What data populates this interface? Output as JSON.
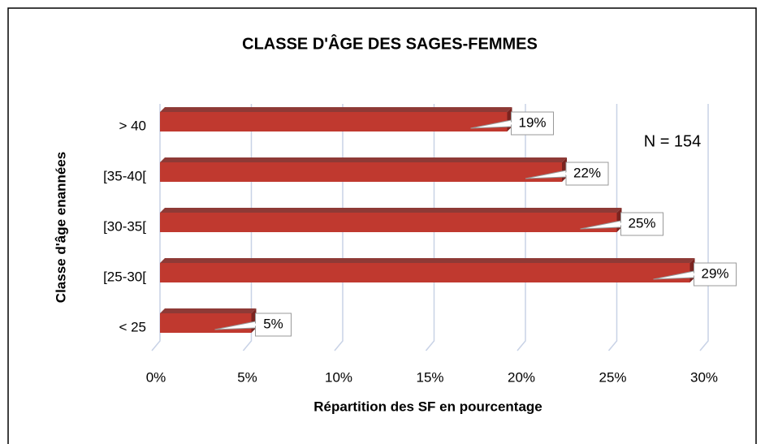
{
  "chart_data": {
    "type": "bar",
    "orientation": "horizontal",
    "title": "CLASSE D'ÂGE DES SAGES-FEMMES",
    "x_label": "Répartition des SF en pourcentage",
    "y_label": "Classe d'âge enannées",
    "annotation": "N = 154",
    "categories": [
      "> 40",
      "[35-40[",
      "[30-35[",
      "[25-30[",
      "< 25"
    ],
    "values": [
      19,
      22,
      25,
      29,
      5
    ],
    "value_labels": [
      "19%",
      "22%",
      "25%",
      "29%",
      "5%"
    ],
    "color": "#c0392f",
    "xlim": [
      0,
      30
    ],
    "xticks": [
      {
        "value": 0,
        "label": "0%"
      },
      {
        "value": 5,
        "label": "5%"
      },
      {
        "value": 10,
        "label": "10%"
      },
      {
        "value": 15,
        "label": "15%"
      },
      {
        "value": 20,
        "label": "20%"
      },
      {
        "value": 25,
        "label": "25%"
      },
      {
        "value": 30,
        "label": "30%"
      }
    ],
    "grid": true
  }
}
